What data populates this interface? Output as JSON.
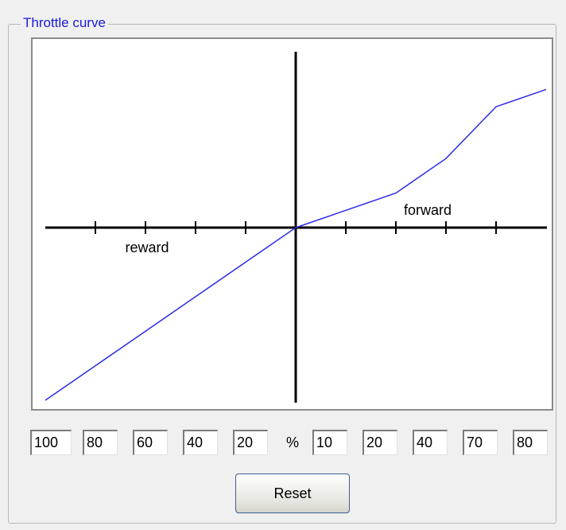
{
  "groupbox": {
    "title": "Throttle curve"
  },
  "curve": {
    "reverse_label": "reward",
    "forward_label": "forward",
    "reverse": [
      100,
      80,
      60,
      40,
      20
    ],
    "unit": "%",
    "forward": [
      10,
      20,
      40,
      70,
      80
    ]
  },
  "button": {
    "label": "Reset"
  }
}
